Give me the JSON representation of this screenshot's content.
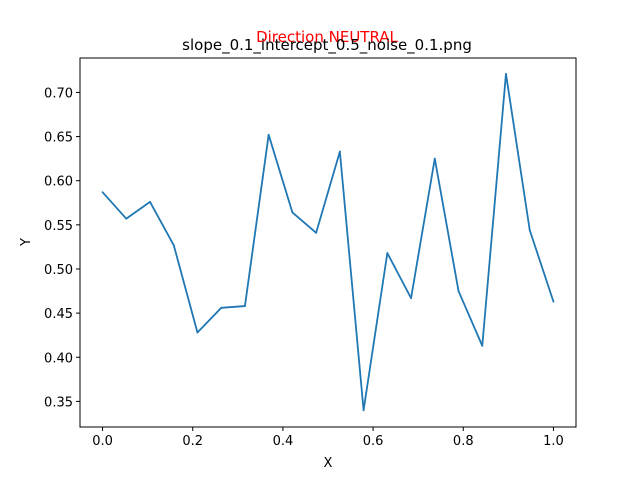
{
  "chart_data": {
    "type": "line",
    "title": "slope_0.1_intercept_0.5_noise_0.1.png",
    "annotation": "Direction NEUTRAL",
    "xlabel": "X",
    "ylabel": "Y",
    "xlim": [
      -0.05,
      1.05
    ],
    "ylim": [
      0.321,
      0.739
    ],
    "xticks": [
      "0.0",
      "0.2",
      "0.4",
      "0.6",
      "0.8",
      "1.0"
    ],
    "yticks": [
      "0.35",
      "0.40",
      "0.45",
      "0.50",
      "0.55",
      "0.60",
      "0.65",
      "0.70"
    ],
    "grid": false,
    "series": [
      {
        "x": [
          0.0,
          0.0526,
          0.1053,
          0.1579,
          0.2105,
          0.2632,
          0.3158,
          0.3684,
          0.4211,
          0.4737,
          0.5263,
          0.5789,
          0.6316,
          0.6842,
          0.7368,
          0.7895,
          0.8421,
          0.8947,
          0.9474,
          1.0
        ],
        "values": [
          0.587,
          0.557,
          0.576,
          0.527,
          0.428,
          0.456,
          0.458,
          0.652,
          0.564,
          0.541,
          0.633,
          0.34,
          0.518,
          0.467,
          0.625,
          0.475,
          0.413,
          0.721,
          0.544,
          0.463
        ]
      }
    ]
  },
  "colors": {
    "line": "#1f77b4",
    "annotation": "#ff0000",
    "axes": "#000000"
  }
}
